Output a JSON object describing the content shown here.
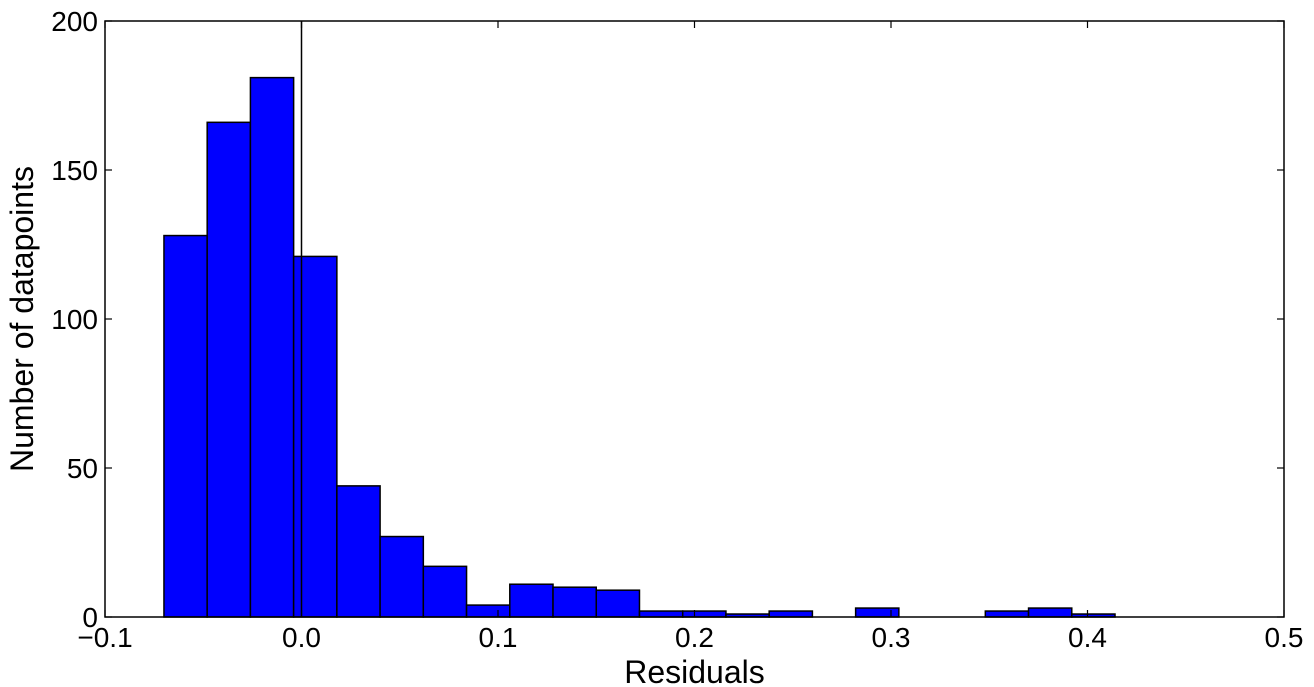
{
  "chart_data": {
    "type": "bar",
    "subtype": "histogram",
    "title": "",
    "xlabel": "Residuals",
    "ylabel": "Number of datapoints",
    "xlim": [
      -0.1,
      0.5
    ],
    "ylim": [
      0,
      200
    ],
    "xticks": [
      -0.1,
      0.0,
      0.1,
      0.2,
      0.3,
      0.4,
      0.5
    ],
    "xtick_labels": [
      "−0.1",
      "0.0",
      "0.1",
      "0.2",
      "0.3",
      "0.4",
      "0.5"
    ],
    "yticks": [
      0,
      50,
      100,
      150,
      200
    ],
    "ytick_labels": [
      "0",
      "50",
      "100",
      "150",
      "200"
    ],
    "reference_line_x": 0.0,
    "grid": false,
    "legend": null,
    "bar_color": "#0000ff",
    "edge_color": "#000000",
    "bins": [
      {
        "x0": -0.07,
        "x1": -0.048,
        "count": 128
      },
      {
        "x0": -0.048,
        "x1": -0.026,
        "count": 166
      },
      {
        "x0": -0.026,
        "x1": -0.004,
        "count": 181
      },
      {
        "x0": -0.004,
        "x1": 0.018,
        "count": 121
      },
      {
        "x0": 0.018,
        "x1": 0.04,
        "count": 44
      },
      {
        "x0": 0.04,
        "x1": 0.062,
        "count": 27
      },
      {
        "x0": 0.062,
        "x1": 0.084,
        "count": 17
      },
      {
        "x0": 0.084,
        "x1": 0.106,
        "count": 4
      },
      {
        "x0": 0.106,
        "x1": 0.128,
        "count": 11
      },
      {
        "x0": 0.128,
        "x1": 0.15,
        "count": 10
      },
      {
        "x0": 0.15,
        "x1": 0.172,
        "count": 9
      },
      {
        "x0": 0.172,
        "x1": 0.194,
        "count": 2
      },
      {
        "x0": 0.194,
        "x1": 0.216,
        "count": 2
      },
      {
        "x0": 0.216,
        "x1": 0.238,
        "count": 1
      },
      {
        "x0": 0.238,
        "x1": 0.26,
        "count": 2
      },
      {
        "x0": 0.26,
        "x1": 0.282,
        "count": 0
      },
      {
        "x0": 0.282,
        "x1": 0.304,
        "count": 3
      },
      {
        "x0": 0.304,
        "x1": 0.326,
        "count": 0
      },
      {
        "x0": 0.326,
        "x1": 0.348,
        "count": 0
      },
      {
        "x0": 0.348,
        "x1": 0.37,
        "count": 2
      },
      {
        "x0": 0.37,
        "x1": 0.392,
        "count": 3
      },
      {
        "x0": 0.392,
        "x1": 0.414,
        "count": 1
      }
    ]
  }
}
